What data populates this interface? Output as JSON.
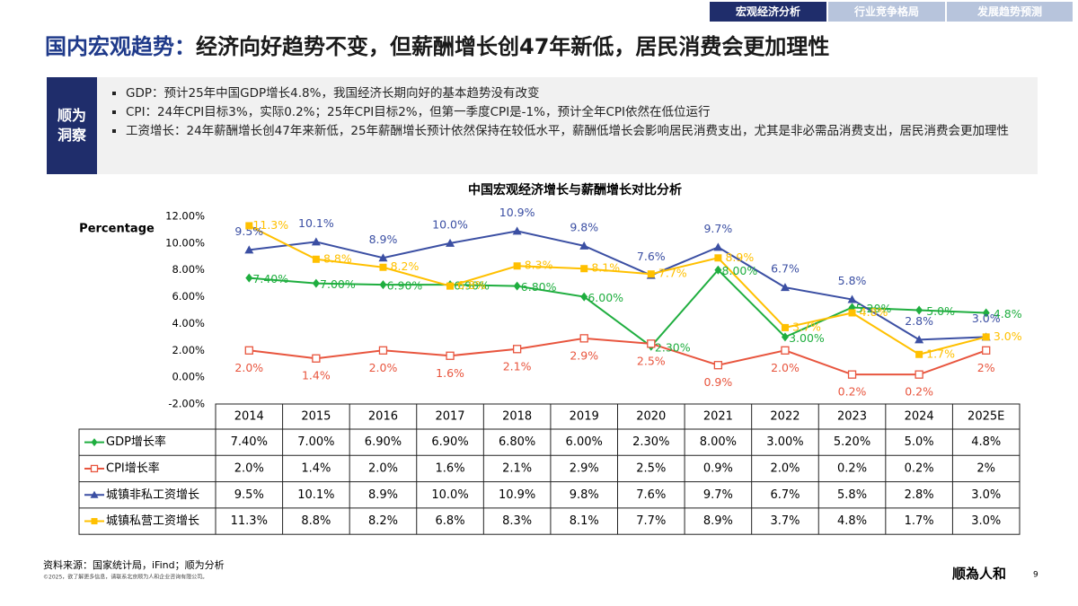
{
  "nav": {
    "tabs": [
      "宏观经济分析",
      "行业竞争格局",
      "发展趋势预测"
    ]
  },
  "header": {
    "title_lead": "国内宏观趋势：",
    "title_rest": "经济向好趋势不变，但薪酬增长创47年新低，居民消费会更加理性"
  },
  "insight": {
    "label": "顺为洞察",
    "bullets": [
      "GDP：预计25年中国GDP增长4.8%，我国经济长期向好的基本趋势没有改变",
      "CPI：24年CPI目标3%，实际0.2%；25年CPI目标2%，但第一季度CPI是-1%，预计全年CPI依然在低位运行",
      "工资增长：24年薪酬增长创47年来新低，25年薪酬增长预计依然保持在较低水平，薪酬低增长会影响居民消费支出，尤其是非必需品消费支出，居民消费会更加理性"
    ]
  },
  "chart_data": {
    "type": "line",
    "title": "中国宏观经济增长与薪酬增长对比分析",
    "y_label": "Percentage",
    "categories": [
      "2014",
      "2015",
      "2016",
      "2017",
      "2018",
      "2019",
      "2020",
      "2021",
      "2022",
      "2023",
      "2024",
      "2025E"
    ],
    "ylim": [
      -2,
      12
    ],
    "yticks": [
      {
        "value": 12,
        "label": "12.00%"
      },
      {
        "value": 10,
        "label": "10.00%"
      },
      {
        "value": 8,
        "label": "8.00%"
      },
      {
        "value": 6,
        "label": "6.00%"
      },
      {
        "value": 4,
        "label": "4.00%"
      },
      {
        "value": 2,
        "label": "2.00%"
      },
      {
        "value": 0,
        "label": "0.00%"
      },
      {
        "value": -2,
        "label": "-2.00%"
      }
    ],
    "grid": false,
    "series": [
      {
        "name": "GDP增长率",
        "color": "#1fae3f",
        "marker": "diamond",
        "values": [
          7.4,
          7.0,
          6.9,
          6.9,
          6.8,
          6.0,
          2.3,
          8.0,
          3.0,
          5.2,
          5.0,
          4.8
        ],
        "value_labels": [
          "7.40%",
          "7.00%",
          "6.90%",
          "6.90%",
          "6.80%",
          "6.00%",
          "2.30%",
          "8.00%",
          "3.00%",
          "5.20%",
          "5.0%",
          "4.8%"
        ]
      },
      {
        "name": "CPI增长率",
        "color": "#e8553e",
        "marker": "open-square",
        "values": [
          2.0,
          1.4,
          2.0,
          1.6,
          2.1,
          2.9,
          2.5,
          0.9,
          2.0,
          0.2,
          0.2,
          2
        ],
        "value_labels": [
          "2.0%",
          "1.4%",
          "2.0%",
          "1.6%",
          "2.1%",
          "2.9%",
          "2.5%",
          "0.9%",
          "2.0%",
          "0.2%",
          "0.2%",
          "2%"
        ]
      },
      {
        "name": "城镇非私工资增长",
        "color": "#3b4fa3",
        "marker": "triangle",
        "values": [
          9.5,
          10.1,
          8.9,
          10.0,
          10.9,
          9.8,
          7.6,
          9.7,
          6.7,
          5.8,
          2.8,
          3.0
        ],
        "value_labels": [
          "9.5%",
          "10.1%",
          "8.9%",
          "10.0%",
          "10.9%",
          "9.8%",
          "7.6%",
          "9.7%",
          "6.7%",
          "5.8%",
          "2.8%",
          "3.0%"
        ]
      },
      {
        "name": "城镇私营工资增长",
        "color": "#ffc000",
        "marker": "square",
        "values": [
          11.3,
          8.8,
          8.2,
          6.8,
          8.3,
          8.1,
          7.7,
          8.9,
          3.7,
          4.8,
          1.7,
          3.0
        ],
        "value_labels": [
          "11.3%",
          "8.8%",
          "8.2%",
          "6.8%",
          "8.3%",
          "8.1%",
          "7.7%",
          "8.9%",
          "3.7%",
          "4.8%",
          "1.7%",
          "3.0%"
        ]
      }
    ]
  },
  "footer": {
    "source": "资料来源：国家统计局，iFind；顺为分析",
    "copyright": "©2025，欲了解更多信息，请联系北京顺为人和企业咨询有限公司。",
    "logo": "顺為人和",
    "page": "9"
  }
}
